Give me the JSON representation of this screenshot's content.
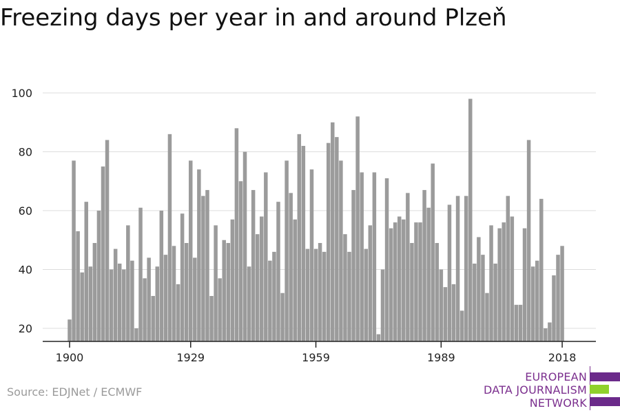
{
  "title": "Freezing days per year in and around Plzeň",
  "source": "Source: EDJNet / ECMWF",
  "logo": {
    "lines": [
      "EUROPEAN",
      "DATA JOURNALISM",
      "NETWORK"
    ],
    "colors": {
      "purple": "#6b2a8a",
      "green": "#8fd12c"
    }
  },
  "chart_data": {
    "type": "bar",
    "title": "Freezing days per year in and around Plzeň",
    "xlabel": "",
    "ylabel": "",
    "ylim": [
      15,
      100
    ],
    "yticks": [
      20,
      40,
      60,
      80,
      100
    ],
    "xticks": [
      1900,
      1929,
      1959,
      1989,
      2018
    ],
    "grid": true,
    "bar_color": "#9b9b9b",
    "x_start": 1900,
    "values": [
      23,
      77,
      53,
      39,
      63,
      41,
      49,
      60,
      75,
      84,
      40,
      47,
      42,
      40,
      55,
      43,
      20,
      61,
      37,
      44,
      31,
      41,
      60,
      45,
      86,
      48,
      35,
      59,
      49,
      77,
      44,
      74,
      65,
      67,
      31,
      55,
      37,
      50,
      49,
      57,
      88,
      70,
      80,
      41,
      67,
      52,
      58,
      73,
      43,
      46,
      63,
      32,
      77,
      66,
      57,
      86,
      82,
      47,
      74,
      47,
      49,
      46,
      83,
      90,
      85,
      77,
      52,
      46,
      67,
      92,
      73,
      47,
      55,
      73,
      18,
      40,
      71,
      54,
      56,
      58,
      57,
      66,
      49,
      56,
      56,
      67,
      61,
      76,
      49,
      40,
      34,
      62,
      35,
      65,
      26,
      65,
      98,
      42,
      51,
      45,
      32,
      55,
      42,
      54,
      56,
      65,
      58,
      28,
      28,
      54,
      84,
      41,
      43,
      64,
      20,
      22,
      38,
      45,
      48
    ]
  }
}
